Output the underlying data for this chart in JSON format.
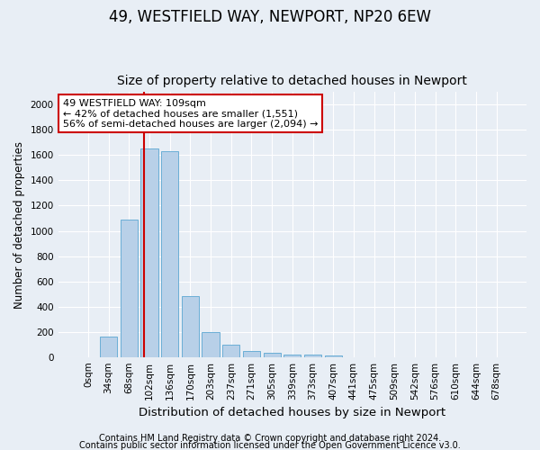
{
  "title1": "49, WESTFIELD WAY, NEWPORT, NP20 6EW",
  "title2": "Size of property relative to detached houses in Newport",
  "xlabel": "Distribution of detached houses by size in Newport",
  "ylabel": "Number of detached properties",
  "footer1": "Contains HM Land Registry data © Crown copyright and database right 2024.",
  "footer2": "Contains public sector information licensed under the Open Government Licence v3.0.",
  "bar_labels": [
    "0sqm",
    "34sqm",
    "68sqm",
    "102sqm",
    "136sqm",
    "170sqm",
    "203sqm",
    "237sqm",
    "271sqm",
    "305sqm",
    "339sqm",
    "373sqm",
    "407sqm",
    "441sqm",
    "475sqm",
    "509sqm",
    "542sqm",
    "576sqm",
    "610sqm",
    "644sqm",
    "678sqm"
  ],
  "bar_values": [
    0,
    165,
    1090,
    1650,
    1630,
    480,
    200,
    100,
    45,
    30,
    20,
    20,
    10,
    0,
    0,
    0,
    0,
    0,
    0,
    0,
    0
  ],
  "bar_color": "#b8d0e8",
  "bar_edge_color": "#6aaed6",
  "annotation_text": "49 WESTFIELD WAY: 109sqm\n← 42% of detached houses are smaller (1,551)\n56% of semi-detached houses are larger (2,094) →",
  "annotation_box_color": "#ffffff",
  "annotation_box_edge": "#cc0000",
  "ylim": [
    0,
    2100
  ],
  "yticks": [
    0,
    200,
    400,
    600,
    800,
    1000,
    1200,
    1400,
    1600,
    1800,
    2000
  ],
  "bg_color": "#e8eef5",
  "plot_bg_color": "#e8eef5",
  "grid_color": "#ffffff",
  "red_line_color": "#cc0000",
  "title1_fontsize": 12,
  "title2_fontsize": 10,
  "xlabel_fontsize": 9.5,
  "ylabel_fontsize": 8.5,
  "tick_fontsize": 7.5,
  "footer_fontsize": 7,
  "annot_fontsize": 8
}
